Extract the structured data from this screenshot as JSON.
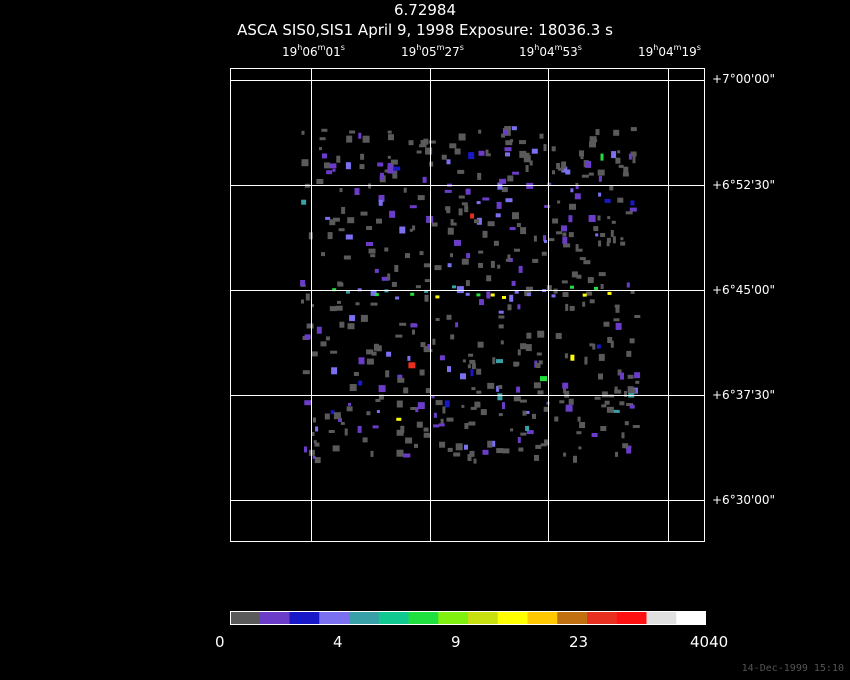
{
  "header": {
    "value": "6.72984",
    "subtitle": "ASCA SIS0,SIS1 April 9, 1998 Exposure: 18036.3 s"
  },
  "ra_labels": [
    {
      "h": "19",
      "m": "06",
      "s": "01"
    },
    {
      "h": "19",
      "m": "05",
      "s": "27"
    },
    {
      "h": "19",
      "m": "04",
      "s": "53"
    },
    {
      "h": "19",
      "m": "04",
      "s": "19"
    }
  ],
  "dec_labels": [
    "+7°00'00\"",
    "+6°52'30\"",
    "+6°45'00\"",
    "+6°37'30\"",
    "+6°30'00\""
  ],
  "colorbar": {
    "colors": [
      "#5a5a5a",
      "#6a3cc8",
      "#1818c8",
      "#7a70f0",
      "#3aa0a8",
      "#10c890",
      "#20e040",
      "#80f010",
      "#c8e010",
      "#ffff00",
      "#ffc800",
      "#c07010",
      "#e83020",
      "#ff1010",
      "#e0e0e0",
      "#ffffff"
    ],
    "labels": [
      "0",
      "4",
      "9",
      "23",
      "4040"
    ]
  },
  "timestamp": "14-Dec-1999 15:10"
}
